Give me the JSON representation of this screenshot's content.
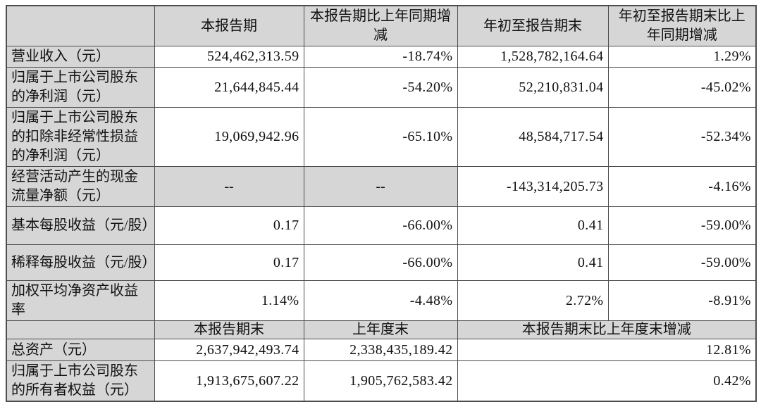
{
  "colors": {
    "shade": "#d6d6d6",
    "border": "#4d4d4d",
    "text": "#111111",
    "bg": "#ffffff"
  },
  "section1": {
    "header": [
      "",
      "本报告期",
      "本报告期比上年同期增减",
      "年初至报告期末",
      "年初至报告期末比上年同期增减"
    ],
    "rows": [
      {
        "label": "营业收入（元）",
        "values": [
          "524,462,313.59",
          "-18.74%",
          "1,528,782,164.64",
          "1.29%"
        ]
      },
      {
        "label": "归属于上市公司股东的净利润（元）",
        "values": [
          "21,644,845.44",
          "-54.20%",
          "52,210,831.04",
          "-45.02%"
        ]
      },
      {
        "label": "归属于上市公司股东的扣除非经常性损益的净利润（元）",
        "values": [
          "19,069,942.96",
          "-65.10%",
          "48,584,717.54",
          "-52.34%"
        ]
      },
      {
        "label": "经营活动产生的现金流量净额（元）",
        "values": [
          "--",
          "--",
          "-143,314,205.73",
          "-4.16%"
        ]
      },
      {
        "label": "基本每股收益（元/股）",
        "values": [
          "0.17",
          "-66.00%",
          "0.41",
          "-59.00%"
        ]
      },
      {
        "label": "稀释每股收益（元/股）",
        "values": [
          "0.17",
          "-66.00%",
          "0.41",
          "-59.00%"
        ]
      },
      {
        "label": "加权平均净资产收益率",
        "values": [
          "1.14%",
          "-4.48%",
          "2.72%",
          "-8.91%"
        ]
      }
    ]
  },
  "section2": {
    "header": [
      "",
      "本报告期末",
      "上年度末",
      "本报告期末比上年度末增减"
    ],
    "rows": [
      {
        "label": "总资产（元）",
        "values": [
          "2,637,942,493.74",
          "2,338,435,189.42",
          "12.81%"
        ]
      },
      {
        "label": "归属于上市公司股东的所有者权益（元）",
        "values": [
          "1,913,675,607.22",
          "1,905,762,583.42",
          "0.42%"
        ]
      }
    ]
  }
}
